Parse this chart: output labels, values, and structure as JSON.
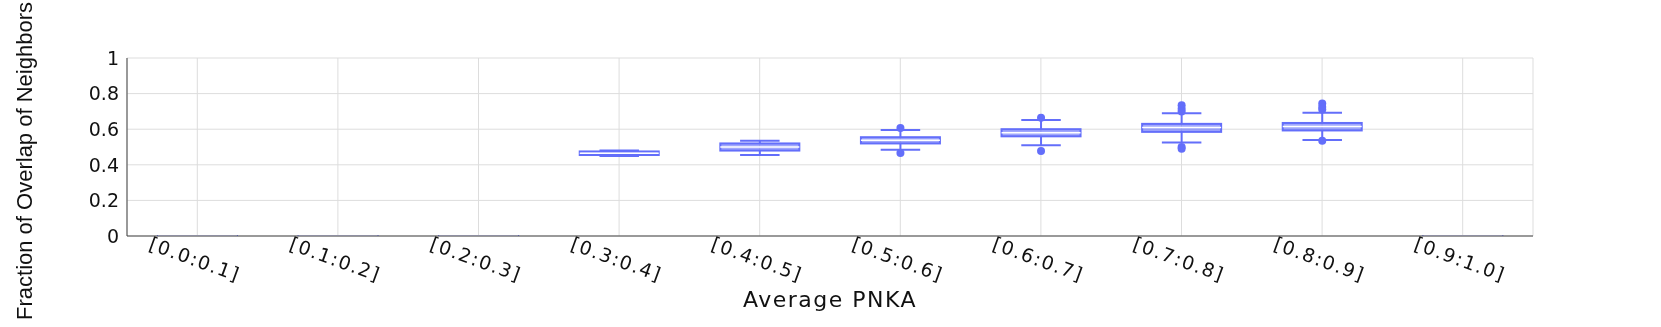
{
  "chart_data": {
    "type": "box",
    "xlabel": "Average PNKA",
    "ylabel": "Fraction of Overlap of Neighbors",
    "categories": [
      "[0.0:0.1]",
      "[0.1:0.2]",
      "[0.2:0.3]",
      "[0.3:0.4]",
      "[0.4:0.5]",
      "[0.5:0.6]",
      "[0.6:0.7]",
      "[0.7:0.8]",
      "[0.8:0.9]",
      "[0.9:1.0]"
    ],
    "series": [
      {
        "color": "#636efa",
        "boxes": [
          {
            "low": 0,
            "q1": 0,
            "median": 0,
            "q3": 0,
            "high": 0
          },
          {
            "low": 0,
            "q1": 0,
            "median": 0,
            "q3": 0,
            "high": 0
          },
          {
            "low": 0,
            "q1": 0,
            "median": 0,
            "q3": 0,
            "high": 0
          },
          {
            "low": 0.45,
            "q1": 0.455,
            "median": 0.465,
            "q3": 0.475,
            "high": 0.48
          },
          {
            "low": 0.455,
            "q1": 0.48,
            "median": 0.5,
            "q3": 0.52,
            "high": 0.535
          },
          {
            "low": 0.485,
            "q1": 0.52,
            "median": 0.538,
            "q3": 0.555,
            "high": 0.595,
            "outliers": [
              0.607,
              0.466
            ]
          },
          {
            "low": 0.51,
            "q1": 0.56,
            "median": 0.58,
            "q3": 0.6,
            "high": 0.652,
            "outliers": [
              0.665,
              0.478
            ]
          },
          {
            "low": 0.525,
            "q1": 0.585,
            "median": 0.61,
            "q3": 0.63,
            "high": 0.69,
            "outliers": [
              0.735,
              0.715,
              0.7,
              0.5,
              0.49
            ]
          },
          {
            "low": 0.54,
            "q1": 0.593,
            "median": 0.615,
            "q3": 0.635,
            "high": 0.693,
            "outliers": [
              0.745,
              0.725,
              0.71,
              0.535
            ]
          },
          {
            "low": 0,
            "q1": 0,
            "median": 0,
            "q3": 0,
            "high": 0
          }
        ]
      }
    ],
    "ylim": [
      0,
      1
    ],
    "yticks": [
      0,
      0.2,
      0.4,
      0.6,
      0.8,
      1
    ],
    "grid": true
  }
}
